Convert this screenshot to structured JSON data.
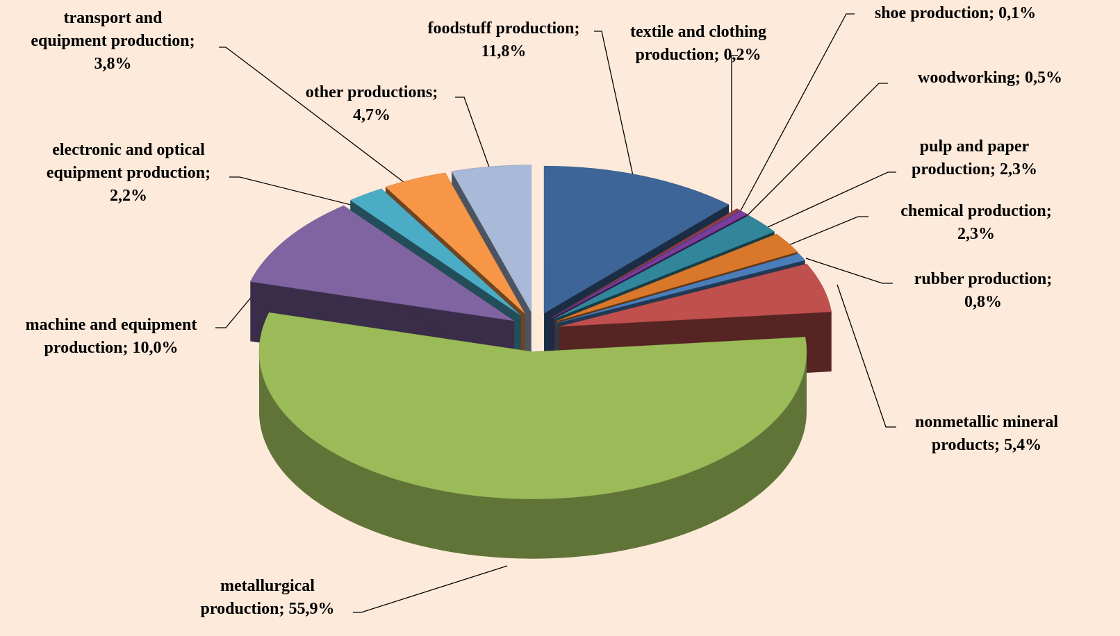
{
  "chart_data": {
    "type": "pie",
    "categories": [
      "foodstuff production;",
      "textile and clothing production;",
      "shoe production;",
      "woodworking;",
      "pulp and paper production;",
      "chemical production;",
      "rubber production;",
      "nonmetallic mineral products;",
      "metallurgical production;",
      "machine and equipment production;",
      "electronic and optical equipment production;",
      "transport and equipment production;",
      "other productions;"
    ],
    "values": [
      11.8,
      0.2,
      0.1,
      0.5,
      2.3,
      2.3,
      0.8,
      5.4,
      55.9,
      10.0,
      2.2,
      3.8,
      4.7
    ],
    "value_labels": [
      "11,8%",
      "0,2%",
      "0,1%",
      "0,5%",
      "2,3%",
      "2,3%",
      "0,8%",
      "5,4%",
      "55,9%",
      "10,0%",
      "2,2%",
      "3,8%",
      "4,7%"
    ],
    "colors": [
      "#3d6597",
      "#9b3b3a",
      "#6a4a8c",
      "#7a3d9e",
      "#31869c",
      "#d9782b",
      "#4a7ebb",
      "#c0504d",
      "#9bbb59",
      "#8064a2",
      "#4bacc6",
      "#f79646",
      "#a9b9d8"
    ]
  }
}
